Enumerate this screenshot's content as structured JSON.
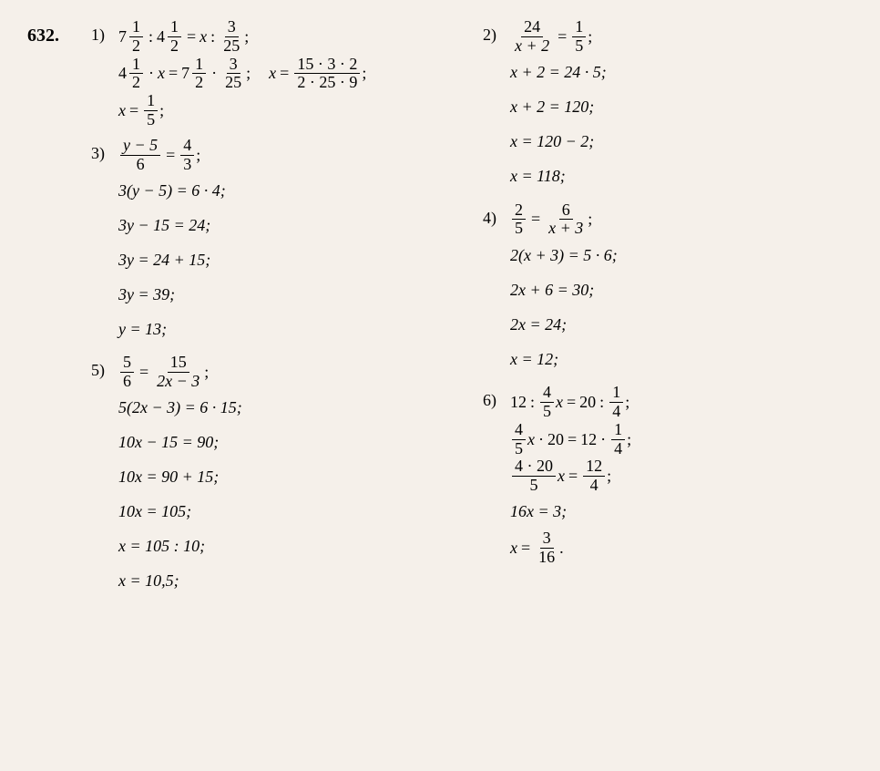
{
  "problem_number": "632.",
  "background_color": "#f5f0ea",
  "text_color": "#000000",
  "fontsize_body": 18,
  "fontsize_probnum": 20,
  "sub1": {
    "label": "1)",
    "line1": {
      "m1w": "7",
      "m1n": "1",
      "m1d": "2",
      "m2w": "4",
      "m2n": "1",
      "m2d": "2",
      "var": "x",
      "fn": "3",
      "fd": "25"
    },
    "line2": {
      "m1w": "4",
      "m1n": "1",
      "m1d": "2",
      "var": "x",
      "m2w": "7",
      "m2n": "1",
      "m2d": "2",
      "fn": "3",
      "fd": "25",
      "var2": "x",
      "bn": "15 · 3 · 2",
      "bd": "2 · 25 · 9"
    },
    "line3": {
      "var": "x",
      "fn": "1",
      "fd": "5"
    }
  },
  "sub2": {
    "label": "2)",
    "line1": {
      "fn": "24",
      "fd": "x + 2",
      "gn": "1",
      "gd": "5"
    },
    "l2": "x + 2 = 24 · 5;",
    "l3": "x + 2 = 120;",
    "l4": "x = 120 − 2;",
    "l5": "x = 118;"
  },
  "sub3": {
    "label": "3)",
    "line1": {
      "fn": "y − 5",
      "fd": "6",
      "gn": "4",
      "gd": "3"
    },
    "l2": "3(y − 5) = 6 · 4;",
    "l3": "3y − 15 = 24;",
    "l4": "3y = 24 + 15;",
    "l5": "3y = 39;",
    "l6": "y = 13;"
  },
  "sub4": {
    "label": "4)",
    "line1": {
      "fn": "2",
      "fd": "5",
      "gn": "6",
      "gd": "x + 3"
    },
    "l2": "2(x + 3) = 5 · 6;",
    "l3": "2x + 6 = 30;",
    "l4": "2x = 24;",
    "l5": "x = 12;"
  },
  "sub5": {
    "label": "5)",
    "line1": {
      "fn": "5",
      "fd": "6",
      "gn": "15",
      "gd": "2x − 3"
    },
    "l2": "5(2x − 3) = 6 · 15;",
    "l3": "10x − 15 = 90;",
    "l4": "10x = 90 + 15;",
    "l5": "10x = 105;",
    "l6": "x = 105 : 10;",
    "l7": "x = 10,5;"
  },
  "sub6": {
    "label": "6)",
    "line1": {
      "a": "12",
      "fn": "4",
      "fd": "5",
      "var": "x",
      "b": "20",
      "gn": "1",
      "gd": "4"
    },
    "line2": {
      "fn": "4",
      "fd": "5",
      "var": "x",
      "b": "20",
      "c": "12",
      "gn": "1",
      "gd": "4"
    },
    "line3": {
      "fn": "4 · 20",
      "fd": "5",
      "var": "x",
      "gn": "12",
      "gd": "4"
    },
    "l4": "16x = 3;",
    "line5": {
      "var": "x",
      "fn": "3",
      "fd": "16"
    }
  }
}
